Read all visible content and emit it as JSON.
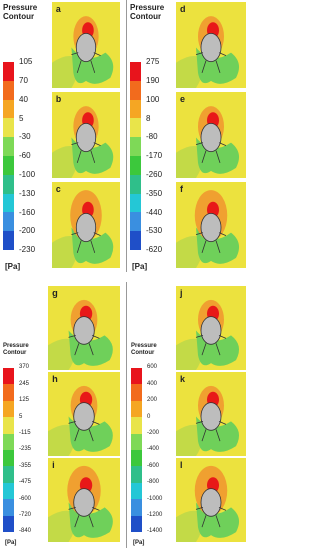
{
  "groups": [
    {
      "legend": {
        "title": "Pressure Contour",
        "levels": [
          105,
          70,
          40,
          5,
          -30,
          -60,
          -100,
          -130,
          -160,
          -200,
          -230
        ],
        "unit": "[Pa]"
      },
      "panels": [
        "a",
        "b",
        "c"
      ]
    },
    {
      "legend": {
        "title": "Pressure Contour",
        "levels": [
          275,
          190,
          100,
          8,
          -80,
          -170,
          -260,
          -350,
          -440,
          -530,
          -620
        ],
        "unit": "[Pa]"
      },
      "panels": [
        "d",
        "e",
        "f"
      ]
    },
    {
      "legend": {
        "title": "Pressure Contour",
        "levels": [
          370,
          245,
          125,
          5,
          -115,
          -235,
          -355,
          -475,
          -600,
          -720,
          -840
        ],
        "unit": "[Pa]"
      },
      "panels": [
        "g",
        "h",
        "i"
      ]
    },
    {
      "legend": {
        "title": "Pressure Contour",
        "levels": [
          600,
          400,
          200,
          0,
          -200,
          -400,
          -600,
          -800,
          -1000,
          -1200,
          -1400
        ],
        "unit": "[Pa]"
      },
      "panels": [
        "j",
        "k",
        "l"
      ]
    }
  ]
}
